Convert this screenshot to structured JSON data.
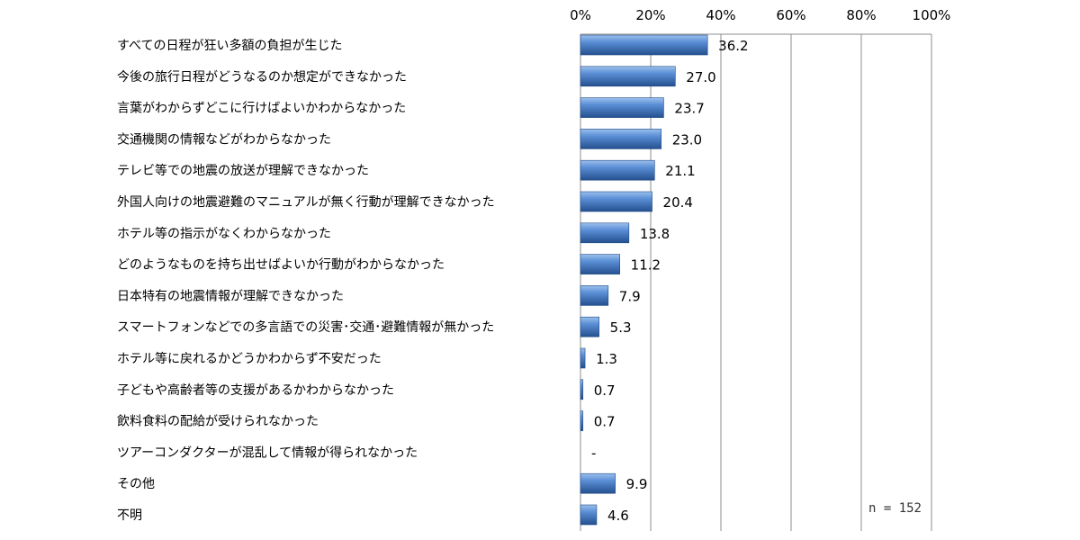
{
  "chart_data": {
    "type": "bar",
    "orientation": "horizontal",
    "categories": [
      "すべての日程が狂い多額の負担が生じた",
      "今後の旅行日程がどうなるのか想定ができなかった",
      "言葉がわからずどこに行けばよいかわからなかった",
      "交通機関の情報などがわからなかった",
      "テレビ等での地震の放送が理解できなかった",
      "外国人向けの地震避難のマニュアルが無く行動が理解できなかった",
      "ホテル等の指示がなくわからなかった",
      "どのようなものを持ち出せばよいか行動がわからなかった",
      "日本特有の地震情報が理解できなかった",
      "スマートフォンなどでの多言語での災害･交通･避難情報が無かった",
      "ホテル等に戻れるかどうかわからず不安だった",
      "子どもや高齢者等の支援があるかわからなかった",
      "飲料食料の配給が受けられなかった",
      "ツアーコンダクターが混乱して情報が得られなかった",
      "その他",
      "不明"
    ],
    "values": [
      36.2,
      27.0,
      23.7,
      23.0,
      21.1,
      20.4,
      13.8,
      11.2,
      7.9,
      5.3,
      1.3,
      0.7,
      0.7,
      null,
      9.9,
      4.6
    ],
    "value_labels": [
      "36.2",
      "27.0",
      "23.7",
      "23.0",
      "21.1",
      "20.4",
      "13.8",
      "11.2",
      "7.9",
      "5.3",
      "1.3",
      "0.7",
      "0.7",
      "-",
      "9.9",
      "4.6"
    ],
    "xlim": [
      0,
      100
    ],
    "xticks": [
      0,
      20,
      40,
      60,
      80,
      100
    ],
    "xtick_labels": [
      "0%",
      "20%",
      "40%",
      "60%",
      "80%",
      "100%"
    ],
    "xaxis_position": "top",
    "grid": true,
    "legend": "none",
    "bar_color": "#4a7ec4",
    "annotation": "n = 152",
    "title": "",
    "xlabel": "",
    "ylabel": ""
  }
}
